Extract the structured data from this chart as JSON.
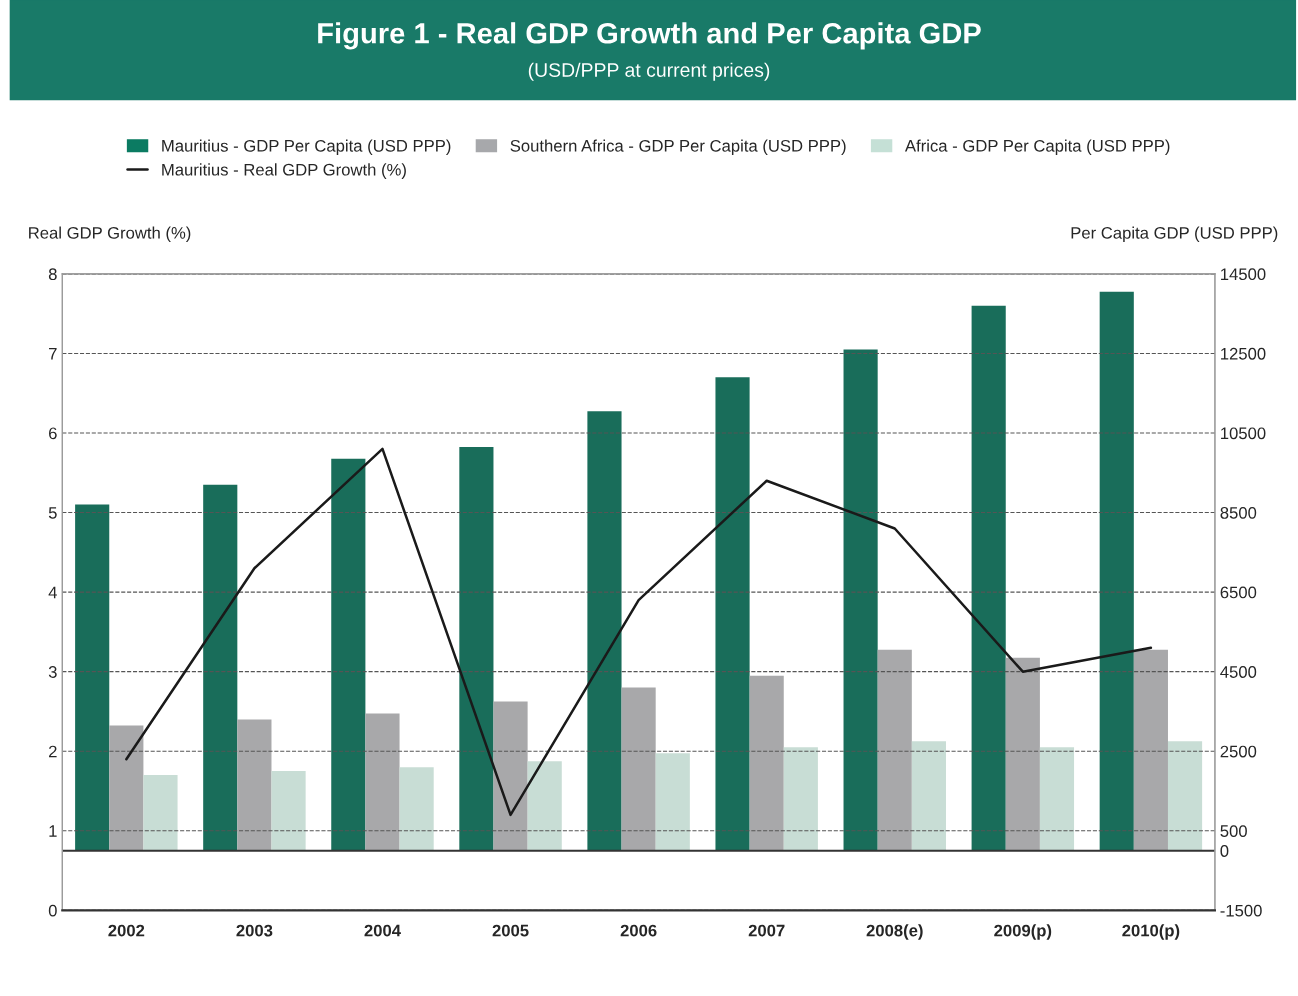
{
  "chart_data": {
    "type": "bar",
    "title": "Figure 1 - Real GDP Growth and Per Capita GDP",
    "subtitle": "(USD/PPP at current prices)",
    "ylabel": "Real GDP Growth (%)",
    "y2label": "Per Capita GDP (USD PPP)",
    "categories": [
      "2002",
      "2003",
      "2004",
      "2005",
      "2006",
      "2007",
      "2008(e)",
      "2009(p)",
      "2010(p)"
    ],
    "series": [
      {
        "name": "Mauritius - GDP Per Capita (USD PPP)",
        "axis": "y2",
        "color": "#0b7b62",
        "values": [
          8700,
          9200,
          9850,
          10150,
          11050,
          11900,
          12600,
          13700,
          14050
        ]
      },
      {
        "name": "Southern Africa - GDP Per Capita (USD PPP)",
        "axis": "y2",
        "color": "#a7a8ab",
        "values": [
          3150,
          3300,
          3450,
          3750,
          4100,
          4400,
          5050,
          4850,
          5050
        ]
      },
      {
        "name": "Africa - GDP Per Capita (USD PPP)",
        "axis": "y2",
        "color": "#c5e0d6",
        "values": [
          1900,
          2000,
          2100,
          2250,
          2450,
          2600,
          2750,
          2600,
          2750
        ]
      },
      {
        "name": "Mauritius - Real GDP Growth (%)",
        "type": "line",
        "axis": "y",
        "color": "#1a1a1a",
        "line_style": "solid",
        "values": [
          1.9,
          4.3,
          5.8,
          1.2,
          3.9,
          5.4,
          4.8,
          3.0,
          3.3
        ]
      }
    ],
    "ylim": [
      0,
      8
    ],
    "yticks": [
      0,
      1,
      2,
      3,
      4,
      5,
      6,
      7,
      8
    ],
    "y2lim": [
      -1500,
      14500
    ],
    "y2ticks": [
      -1500,
      0,
      500,
      2500,
      4500,
      6500,
      8500,
      10500,
      12500,
      14500
    ],
    "grid": "y",
    "legend": "top"
  }
}
